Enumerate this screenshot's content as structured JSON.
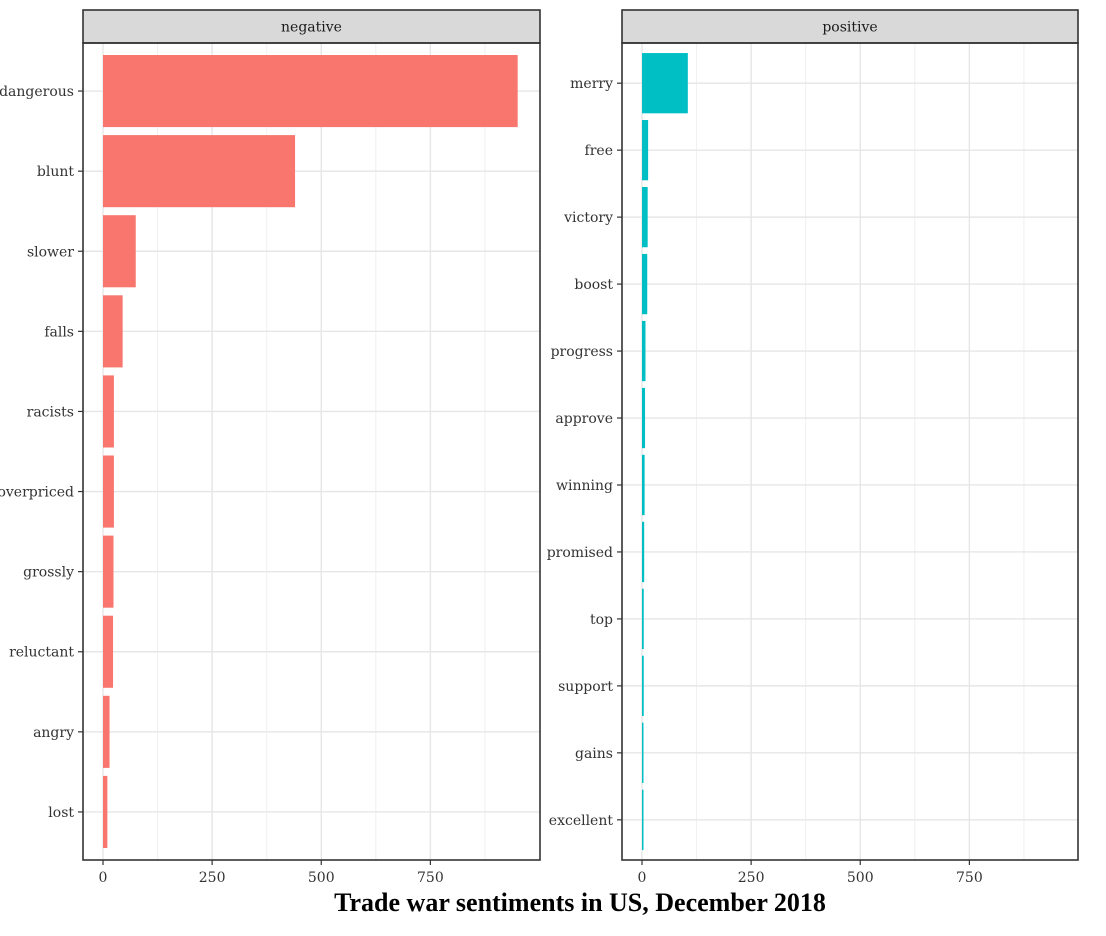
{
  "chart_data": {
    "type": "bar",
    "orientation": "horizontal",
    "title": "Trade war sentiments in US, December 2018",
    "xlim": [
      0,
      1000
    ],
    "xticks": [
      0,
      250,
      500,
      750
    ],
    "colors": {
      "negative": "#F8766D",
      "positive": "#00BFC4"
    },
    "panels": [
      {
        "name": "negative",
        "categories": [
          "dangerous",
          "blunt",
          "slower",
          "falls",
          "racists",
          "overpriced",
          "grossly",
          "reluctant",
          "angry",
          "lost"
        ],
        "values": [
          950,
          440,
          75,
          45,
          25,
          25,
          24,
          23,
          15,
          10
        ]
      },
      {
        "name": "positive",
        "categories": [
          "merry",
          "free",
          "victory",
          "boost",
          "progress",
          "approve",
          "winning",
          "promised",
          "top",
          "support",
          "gains",
          "excellent"
        ],
        "values": [
          105,
          14,
          13,
          12,
          8,
          7,
          6,
          5,
          4,
          4,
          3,
          2
        ]
      }
    ]
  }
}
